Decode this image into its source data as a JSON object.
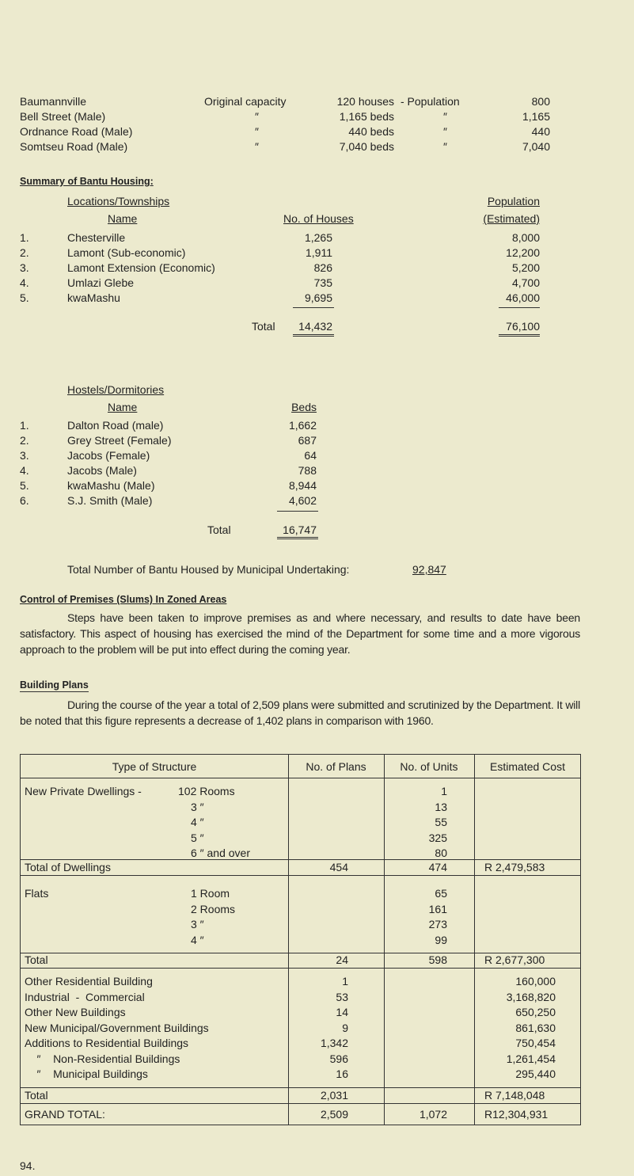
{
  "capacity": [
    {
      "name": "Baumannville",
      "label": "Original capacity",
      "amount": "120 houses",
      "sep": "- Population",
      "pop": "800"
    },
    {
      "name": "Bell Street (Male)",
      "label": "″",
      "amount": "1,165 beds",
      "sep": "″",
      "pop": "1,165"
    },
    {
      "name": "Ordnance Road (Male)",
      "label": "″",
      "amount": "440 beds",
      "sep": "″",
      "pop": "440"
    },
    {
      "name": "Somtseu Road (Male)",
      "label": "″",
      "amount": "7,040 beds",
      "sep": "″",
      "pop": "7,040"
    }
  ],
  "summary": {
    "heading": "Summary of Bantu Housing:",
    "col1a": "Locations/Townships",
    "col1b": "Name",
    "col2": "No. of Houses",
    "col3a": "Population",
    "col3b": "(Estimated)",
    "rows": [
      {
        "n": "1.",
        "name": "Chesterville",
        "houses": "1,265",
        "pop": "8,000"
      },
      {
        "n": "2.",
        "name": "Lamont (Sub-economic)",
        "houses": "1,911",
        "pop": "12,200"
      },
      {
        "n": "3.",
        "name": "Lamont Extension (Economic)",
        "houses": "826",
        "pop": "5,200"
      },
      {
        "n": "4.",
        "name": "Umlazi Glebe",
        "houses": "735",
        "pop": "4,700"
      },
      {
        "n": "5.",
        "name": "kwaMashu",
        "houses": "9,695",
        "pop": "46,000"
      }
    ],
    "total_label": "Total",
    "total_houses": "14,432",
    "total_pop": "76,100"
  },
  "hostels": {
    "col1a": "Hostels/Dormitories",
    "col1b": "Name",
    "col2": "Beds",
    "rows": [
      {
        "n": "1.",
        "name": "Dalton Road (male)",
        "beds": "1,662"
      },
      {
        "n": "2.",
        "name": "Grey Street (Female)",
        "beds": "687"
      },
      {
        "n": "3.",
        "name": "Jacobs (Female)",
        "beds": "64"
      },
      {
        "n": "4.",
        "name": "Jacobs (Male)",
        "beds": "788"
      },
      {
        "n": "5.",
        "name": "kwaMashu (Male)",
        "beds": "8,944"
      },
      {
        "n": "6.",
        "name": "S.J. Smith (Male)",
        "beds": "4,602"
      }
    ],
    "total_label": "Total",
    "total_beds": "16,747"
  },
  "grand": {
    "label": "Total Number of Bantu Housed by Municipal Undertaking:",
    "value": "92,847"
  },
  "control": {
    "heading": "Control of Premises (Slums) In Zoned Areas",
    "text": "Steps have been taken to improve premises as and where necessary, and results to date have been satisfactory. This aspect of housing has exercised the mind of the Department for some time and a more vigorous approach to the problem will be put into effect during the coming year."
  },
  "plans": {
    "heading": "Building Plans",
    "text": "During the course of the year a total of 2,509 plans were submitted and scrutinized by the Department. It will be noted that this figure represents a decrease of 1,402 plans in comparison with 1960."
  },
  "table": {
    "headers": [
      "Type of Structure",
      "No. of Plans",
      "No. of Units",
      "Estimated Cost"
    ],
    "dwellings": {
      "label": "New Private Dwellings -",
      "sub": [
        "102 Rooms",
        "3  ″",
        "4  ″",
        "5  ″",
        "6  ″ and over"
      ],
      "units": [
        "1",
        "13",
        "55",
        "325",
        "80"
      ]
    },
    "dwell_total": [
      "Total of Dwellings",
      "454",
      "474",
      "R 2,479,583"
    ],
    "flats": {
      "label": "Flats",
      "sub": [
        "1 Room",
        "2  Rooms",
        "3  ″",
        "4  ″"
      ],
      "units": [
        "65",
        "161",
        "273",
        "99"
      ]
    },
    "flats_total": [
      "Total",
      "24",
      "598",
      "R 2,677,300"
    ],
    "other": [
      [
        "Other Residential Building",
        "1",
        "160,000"
      ],
      [
        "Industrial  -  Commercial",
        "53",
        "3,168,820"
      ],
      [
        "Other New Buildings",
        "14",
        "650,250"
      ],
      [
        "New Municipal/Government Buildings",
        "9",
        "861,630"
      ],
      [
        "Additions to Residential Buildings",
        "1,342",
        "750,454"
      ],
      [
        "    ″    Non-Residential Buildings",
        "596",
        "1,261,454"
      ],
      [
        "    ″    Municipal Buildings",
        "16",
        "295,440"
      ]
    ],
    "other_total": [
      "Total",
      "2,031",
      "R 7,148,048"
    ],
    "grand_total": [
      "GRAND TOTAL:",
      "2,509",
      "1,072",
      "R12,304,931"
    ]
  },
  "page_number": "94."
}
